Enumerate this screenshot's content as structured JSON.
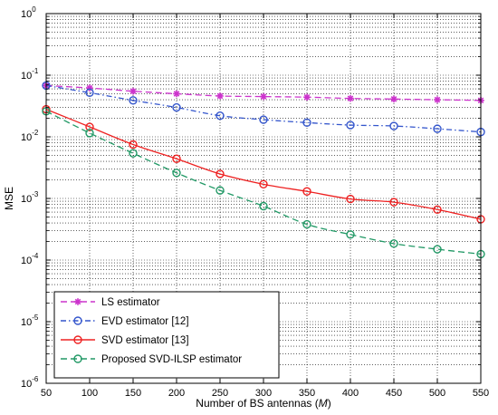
{
  "chart_data": {
    "type": "line",
    "x": [
      50,
      100,
      150,
      200,
      250,
      300,
      350,
      400,
      450,
      500,
      550
    ],
    "xlim": [
      50,
      550
    ],
    "ylim": [
      1e-06,
      1
    ],
    "yscale": "log",
    "grid": true,
    "xlabel": "Number of BS antennas (",
    "xlabel_var": "M",
    "xlabel_end": ")",
    "ylabel": "MSE",
    "xticks": [
      "50",
      "100",
      "150",
      "200",
      "250",
      "300",
      "350",
      "400",
      "450",
      "500",
      "550"
    ],
    "yticks": [
      {
        "base": "10",
        "exp": "0"
      },
      {
        "base": "10",
        "exp": "-1"
      },
      {
        "base": "10",
        "exp": "-2"
      },
      {
        "base": "10",
        "exp": "-3"
      },
      {
        "base": "10",
        "exp": "-4"
      },
      {
        "base": "10",
        "exp": "-5"
      },
      {
        "base": "10",
        "exp": "-6"
      }
    ],
    "legend_position": "bottom-left",
    "series": [
      {
        "name": "LS estimator",
        "color": "#cc33cc",
        "dash": "dashed",
        "marker": "star",
        "values": [
          0.068,
          0.062,
          0.055,
          0.05,
          0.046,
          0.045,
          0.044,
          0.042,
          0.041,
          0.04,
          0.039
        ]
      },
      {
        "name": "EVD estimator [12]",
        "color": "#3355cc",
        "dash": "dashdot",
        "marker": "circle",
        "values": [
          0.068,
          0.052,
          0.039,
          0.03,
          0.022,
          0.019,
          0.017,
          0.0155,
          0.015,
          0.0135,
          0.012
        ]
      },
      {
        "name": "SVD estimator [13]",
        "color": "#ee2222",
        "dash": "solid",
        "marker": "circle",
        "values": [
          0.028,
          0.0145,
          0.0075,
          0.0044,
          0.0025,
          0.0017,
          0.0013,
          0.00098,
          0.00087,
          0.00066,
          0.00046
        ]
      },
      {
        "name": "Proposed SVD-ILSP estimator",
        "color": "#229966",
        "dash": "dashed",
        "marker": "circle",
        "values": [
          0.026,
          0.0115,
          0.0054,
          0.0026,
          0.00135,
          0.00075,
          0.00038,
          0.00026,
          0.000185,
          0.00015,
          0.000125
        ]
      }
    ]
  }
}
